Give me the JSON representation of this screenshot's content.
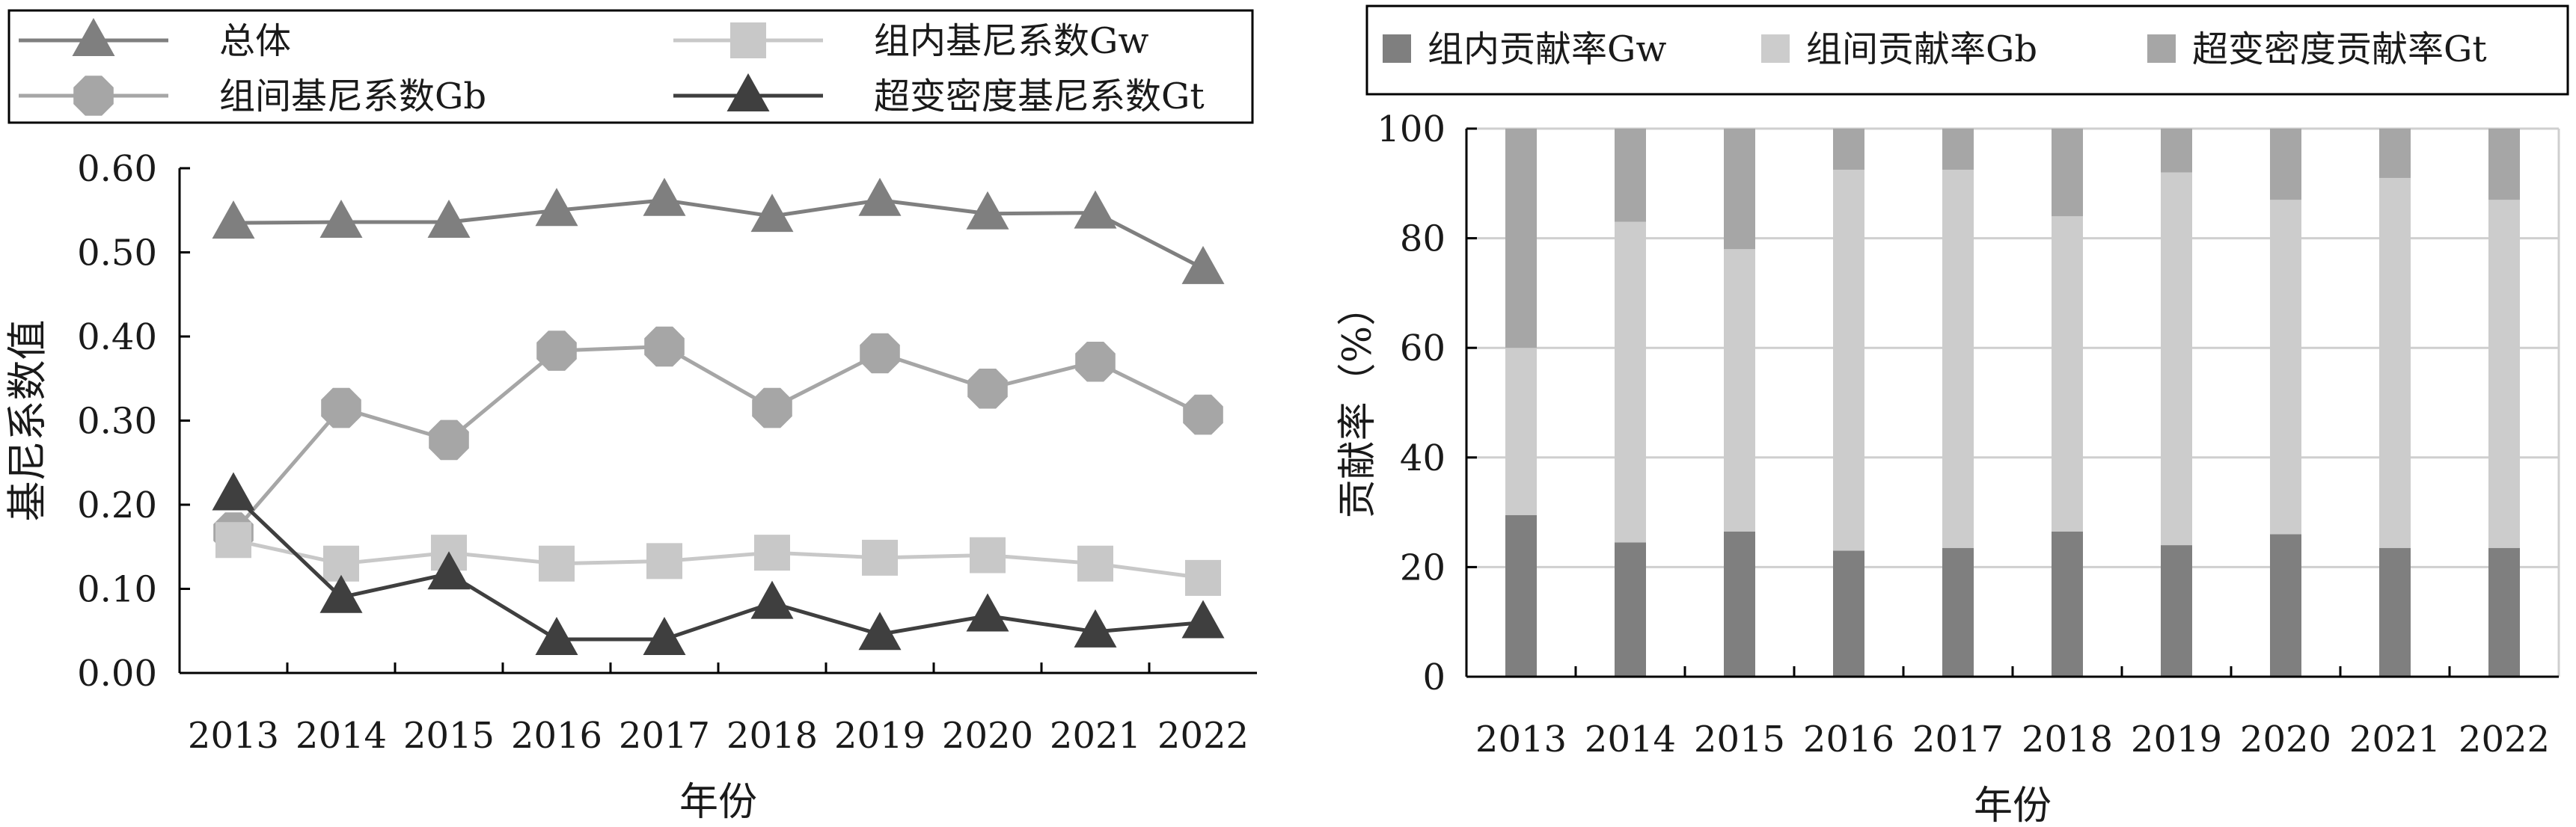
{
  "chart_data": [
    {
      "type": "line",
      "xlabel": "年份",
      "ylabel": "基尼系数值",
      "ylim": [
        0,
        0.6
      ],
      "yticks": [
        "0.00",
        "0.10",
        "0.20",
        "0.30",
        "0.40",
        "0.50",
        "0.60"
      ],
      "categories": [
        "2013",
        "2014",
        "2015",
        "2016",
        "2017",
        "2018",
        "2019",
        "2020",
        "2021",
        "2022"
      ],
      "legend_position": "top",
      "series": [
        {
          "name": "总体",
          "marker": "triangle",
          "color": "#7f7f7f",
          "values": [
            0.535,
            0.536,
            0.536,
            0.55,
            0.562,
            0.543,
            0.562,
            0.546,
            0.547,
            0.481
          ]
        },
        {
          "name": "组内基尼系数Gw",
          "marker": "square",
          "color": "#c8c8c8",
          "values": [
            0.158,
            0.13,
            0.143,
            0.13,
            0.133,
            0.143,
            0.137,
            0.14,
            0.13,
            0.113
          ]
        },
        {
          "name": "组间基尼系数Gb",
          "marker": "octagon",
          "color": "#a6a6a6",
          "values": [
            0.167,
            0.315,
            0.277,
            0.383,
            0.388,
            0.315,
            0.38,
            0.338,
            0.37,
            0.307
          ]
        },
        {
          "name": "超变密度基尼系数Gt",
          "marker": "triangle",
          "color": "#3f3f3f",
          "values": [
            0.212,
            0.09,
            0.118,
            0.04,
            0.04,
            0.083,
            0.046,
            0.068,
            0.049,
            0.06
          ]
        }
      ]
    },
    {
      "type": "bar",
      "stacked": true,
      "xlabel": "年份",
      "ylabel": "贡献率（%）",
      "ylim": [
        0,
        100
      ],
      "yticks": [
        "0",
        "20",
        "40",
        "60",
        "80",
        "100"
      ],
      "grid": true,
      "categories": [
        "2013",
        "2014",
        "2015",
        "2016",
        "2017",
        "2018",
        "2019",
        "2020",
        "2021",
        "2022"
      ],
      "legend_position": "top",
      "series": [
        {
          "name": "组内贡献率Gw",
          "color": "#7f7f7f",
          "values": [
            29.5,
            24.5,
            26.5,
            23.0,
            23.5,
            26.5,
            24.0,
            26.0,
            23.5,
            23.5
          ]
        },
        {
          "name": "组间贡献率Gb",
          "color": "#cccccc",
          "values": [
            30.5,
            58.5,
            51.5,
            69.5,
            69.0,
            57.5,
            68.0,
            61.0,
            67.5,
            63.5
          ]
        },
        {
          "name": "超变密度贡献率Gt",
          "color": "#a6a6a6",
          "values": [
            40.0,
            17.0,
            22.0,
            7.5,
            7.5,
            16.0,
            8.0,
            13.0,
            9.0,
            13.0
          ]
        }
      ]
    }
  ]
}
